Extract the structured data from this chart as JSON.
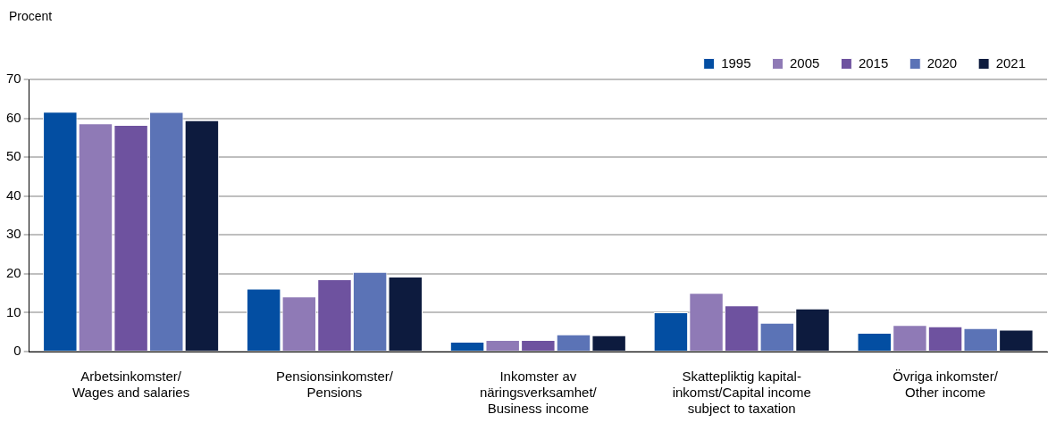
{
  "chart_data": {
    "type": "bar",
    "ylabel": "Procent",
    "categories": [
      "Arbetsinkomster/\nWages and salaries",
      "Pensionsinkomster/\nPensions",
      "Inkomster av\nnäringsverksamhet/\nBusiness income",
      "Skattepliktig kapital-\ninkomst/Capital income\nsubject to taxation",
      "Övriga inkomster/\nOther income"
    ],
    "series": [
      {
        "name": "1995",
        "color": "#034ea2",
        "values": [
          61.7,
          16.2,
          2.5,
          10.1,
          4.8
        ]
      },
      {
        "name": "2005",
        "color": "#8f7ab6",
        "values": [
          58.7,
          14.2,
          3.0,
          15.1,
          6.8
        ]
      },
      {
        "name": "2015",
        "color": "#6e529f",
        "values": [
          58.3,
          18.6,
          3.0,
          11.9,
          6.5
        ]
      },
      {
        "name": "2020",
        "color": "#5b73b6",
        "values": [
          61.6,
          20.5,
          4.4,
          7.4,
          6.0
        ]
      },
      {
        "name": "2021",
        "color": "#0d1b3e",
        "values": [
          59.5,
          19.3,
          4.2,
          11.1,
          5.6
        ]
      }
    ],
    "ylim": [
      0,
      70
    ],
    "yticks": [
      0,
      10,
      20,
      30,
      40,
      50,
      60,
      70
    ],
    "grid": "y",
    "legend": "top right"
  }
}
